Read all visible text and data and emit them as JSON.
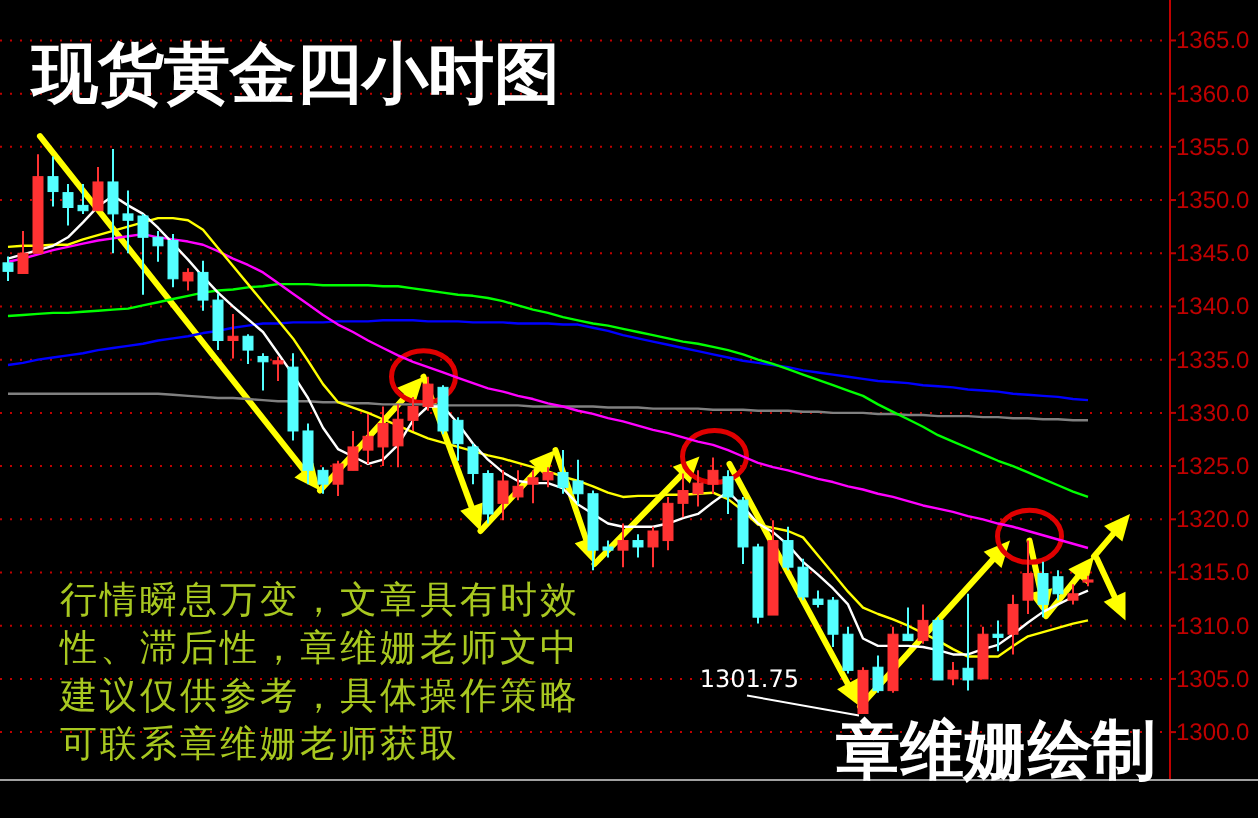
{
  "chart_data": {
    "type": "candlestick",
    "title": "现货黄金四小时图",
    "annotations": [
      "行情瞬息万变，文章具有时效性、滞后性，章维姗老师文中建议仅供参考，具体操作策略可联系章维姗老师获取",
      "章维姗绘制",
      "1301.75"
    ],
    "categories": [
      null,
      null,
      null,
      null,
      null,
      null,
      null,
      null,
      null,
      null,
      null,
      null,
      null,
      null,
      null,
      null,
      null,
      null,
      null,
      null,
      null,
      null,
      null,
      null,
      null,
      null,
      null,
      null,
      null,
      null,
      null,
      null,
      null,
      null,
      null,
      null,
      null,
      null,
      null,
      null,
      null,
      null,
      null,
      null,
      null,
      null,
      null,
      null,
      null,
      null,
      null,
      null,
      null,
      null,
      null,
      null,
      null,
      null,
      null,
      null,
      null,
      null,
      null,
      null,
      null,
      null,
      null,
      null,
      null,
      null,
      null,
      null,
      null
    ],
    "ohlc": [
      [
        1344.1,
        1344.7,
        1342.4,
        1343.3
      ],
      [
        1343.1,
        1347.1,
        1343.1,
        1345.0
      ],
      [
        1345.0,
        1354.3,
        1345.0,
        1352.2
      ],
      [
        1352.2,
        1354.1,
        1349.4,
        1350.8
      ],
      [
        1350.7,
        1351.5,
        1347.6,
        1349.3
      ],
      [
        1349.5,
        1351.5,
        1348.7,
        1349.0
      ],
      [
        1349.0,
        1353.1,
        1349.0,
        1351.7
      ],
      [
        1351.7,
        1354.8,
        1345.0,
        1348.7
      ],
      [
        1348.7,
        1350.9,
        1345.0,
        1348.1
      ],
      [
        1348.5,
        1348.7,
        1341.1,
        1346.5
      ],
      [
        1346.5,
        1347.1,
        1344.2,
        1345.7
      ],
      [
        1346.2,
        1346.8,
        1341.8,
        1342.6
      ],
      [
        1342.4,
        1343.6,
        1341.5,
        1343.2
      ],
      [
        1343.2,
        1344.3,
        1339.6,
        1340.6
      ],
      [
        1340.6,
        1341.2,
        1335.9,
        1336.8
      ],
      [
        1336.8,
        1339.3,
        1335.1,
        1337.2
      ],
      [
        1337.2,
        1337.4,
        1334.6,
        1335.9
      ],
      [
        1335.3,
        1335.6,
        1332.1,
        1334.8
      ],
      [
        1334.6,
        1335.3,
        1333.0,
        1334.9
      ],
      [
        1334.3,
        1335.6,
        1327.4,
        1328.3
      ],
      [
        1328.3,
        1329.0,
        1323.3,
        1324.6
      ],
      [
        1324.6,
        1324.9,
        1322.4,
        1323.3
      ],
      [
        1323.3,
        1325.5,
        1322.2,
        1325.2
      ],
      [
        1324.6,
        1328.3,
        1324.6,
        1326.8
      ],
      [
        1326.5,
        1329.9,
        1325.2,
        1327.8
      ],
      [
        1326.8,
        1330.6,
        1325.0,
        1329.0
      ],
      [
        1326.9,
        1330.8,
        1324.9,
        1329.4
      ],
      [
        1329.3,
        1331.5,
        1328.3,
        1330.6
      ],
      [
        1330.6,
        1333.4,
        1330.2,
        1332.7
      ],
      [
        1332.4,
        1332.6,
        1328.0,
        1328.3
      ],
      [
        1329.3,
        1329.6,
        1325.5,
        1327.1
      ],
      [
        1326.8,
        1327.1,
        1323.3,
        1324.3
      ],
      [
        1324.3,
        1324.6,
        1319.6,
        1320.5
      ],
      [
        1321.5,
        1324.6,
        1319.9,
        1323.6
      ],
      [
        1322.1,
        1324.6,
        1321.8,
        1323.1
      ],
      [
        1323.3,
        1324.6,
        1321.5,
        1323.9
      ],
      [
        1323.7,
        1324.9,
        1323.0,
        1324.4
      ],
      [
        1324.4,
        1326.5,
        1322.4,
        1323.0
      ],
      [
        1323.6,
        1325.6,
        1321.4,
        1322.4
      ],
      [
        1322.4,
        1322.7,
        1315.2,
        1317.1
      ],
      [
        1317.4,
        1318.0,
        1316.4,
        1317.1
      ],
      [
        1317.1,
        1319.6,
        1315.5,
        1318.0
      ],
      [
        1318.0,
        1318.6,
        1316.4,
        1317.4
      ],
      [
        1317.4,
        1319.3,
        1315.5,
        1318.9
      ],
      [
        1318.0,
        1322.1,
        1317.1,
        1321.5
      ],
      [
        1321.5,
        1324.3,
        1320.2,
        1322.7
      ],
      [
        1322.4,
        1324.6,
        1321.2,
        1323.4
      ],
      [
        1323.3,
        1325.8,
        1322.4,
        1324.6
      ],
      [
        1324.0,
        1324.6,
        1320.5,
        1322.1
      ],
      [
        1321.8,
        1322.1,
        1315.8,
        1317.4
      ],
      [
        1317.4,
        1317.7,
        1310.2,
        1310.8
      ],
      [
        1311.0,
        1319.9,
        1311.0,
        1318.0
      ],
      [
        1318.0,
        1319.3,
        1315.2,
        1315.5
      ],
      [
        1315.5,
        1316.3,
        1312.4,
        1312.7
      ],
      [
        1312.5,
        1313.3,
        1311.7,
        1312.0
      ],
      [
        1312.4,
        1312.7,
        1308.0,
        1309.2
      ],
      [
        1309.2,
        1309.9,
        1305.5,
        1305.8
      ],
      [
        1301.75,
        1306.1,
        1301.75,
        1305.8
      ],
      [
        1306.1,
        1307.2,
        1303.7,
        1303.9
      ],
      [
        1303.9,
        1309.9,
        1303.7,
        1309.2
      ],
      [
        1309.2,
        1311.7,
        1308.6,
        1308.6
      ],
      [
        1308.6,
        1312.0,
        1308.3,
        1310.5
      ],
      [
        1310.5,
        1310.8,
        1304.9,
        1304.9
      ],
      [
        1305.0,
        1306.6,
        1304.4,
        1305.8
      ],
      [
        1306.0,
        1313.0,
        1303.9,
        1304.9
      ],
      [
        1305.0,
        1309.9,
        1305.0,
        1309.2
      ],
      [
        1309.2,
        1310.5,
        1307.6,
        1308.9
      ],
      [
        1309.2,
        1312.9,
        1307.3,
        1312.0
      ],
      [
        1312.4,
        1318.0,
        1311.1,
        1314.9
      ],
      [
        1314.9,
        1316.0,
        1310.8,
        1312.0
      ],
      [
        1314.6,
        1315.2,
        1312.4,
        1313.0
      ],
      [
        1312.4,
        1313.9,
        1312.0,
        1313.0
      ],
      [
        1314.1,
        1314.7,
        1313.7,
        1314.3
      ]
    ],
    "colors": [
      "#54ffff",
      "#ff3232",
      "#ff3232",
      "#54ffff",
      "#54ffff",
      "#54ffff",
      "#ff3232",
      "#54ffff",
      "#54ffff",
      "#54ffff",
      "#54ffff",
      "#54ffff",
      "#ff3232",
      "#54ffff",
      "#54ffff",
      "#ff3232",
      "#54ffff",
      "#54ffff",
      "#ff3232",
      "#54ffff",
      "#54ffff",
      "#54ffff",
      "#ff3232",
      "#ff3232",
      "#ff3232",
      "#ff3232",
      "#ff3232",
      "#ff3232",
      "#ff3232",
      "#54ffff",
      "#54ffff",
      "#54ffff",
      "#54ffff",
      "#ff3232",
      "#ff3232",
      "#ff3232",
      "#ff3232",
      "#54ffff",
      "#54ffff",
      "#54ffff",
      "#54ffff",
      "#ff3232",
      "#54ffff",
      "#ff3232",
      "#ff3232",
      "#ff3232",
      "#ff3232",
      "#ff3232",
      "#54ffff",
      "#54ffff",
      "#54ffff",
      "#ff3232",
      "#54ffff",
      "#54ffff",
      "#54ffff",
      "#54ffff",
      "#54ffff",
      "#ff3232",
      "#54ffff",
      "#ff3232",
      "#54ffff",
      "#ff3232",
      "#54ffff",
      "#ff3232",
      "#54ffff",
      "#ff3232",
      "#54ffff",
      "#ff3232",
      "#ff3232",
      "#54ffff",
      "#54ffff",
      "#ff3232",
      "#ff3232"
    ],
    "series": [
      {
        "type": "line",
        "color": "#808080",
        "values": [
          1331.8,
          1331.8,
          1331.8,
          1331.8,
          1331.8,
          1331.8,
          1331.8,
          1331.8,
          1331.8,
          1331.8,
          1331.8,
          1331.7,
          1331.6,
          1331.5,
          1331.4,
          1331.4,
          1331.3,
          1331.2,
          1331.1,
          1331.1,
          1331.1,
          1331.0,
          1331.0,
          1330.9,
          1330.9,
          1330.8,
          1330.8,
          1330.8,
          1330.8,
          1330.7,
          1330.7,
          1330.7,
          1330.7,
          1330.7,
          1330.7,
          1330.6,
          1330.6,
          1330.6,
          1330.6,
          1330.6,
          1330.5,
          1330.5,
          1330.5,
          1330.4,
          1330.4,
          1330.4,
          1330.4,
          1330.3,
          1330.3,
          1330.3,
          1330.2,
          1330.2,
          1330.2,
          1330.1,
          1330.1,
          1330.0,
          1330.0,
          1330.0,
          1329.9,
          1329.9,
          1329.8,
          1329.8,
          1329.7,
          1329.7,
          1329.7,
          1329.6,
          1329.6,
          1329.5,
          1329.5,
          1329.4,
          1329.4,
          1329.3,
          1329.3
        ]
      },
      {
        "type": "line",
        "color": "#0000ff",
        "values": [
          1334.5,
          1334.7,
          1335.0,
          1335.2,
          1335.4,
          1335.6,
          1335.9,
          1336.1,
          1336.3,
          1336.5,
          1336.8,
          1337.0,
          1337.2,
          1337.5,
          1337.7,
          1338.0,
          1338.2,
          1338.4,
          1338.4,
          1338.5,
          1338.5,
          1338.5,
          1338.6,
          1338.6,
          1338.6,
          1338.7,
          1338.7,
          1338.7,
          1338.6,
          1338.6,
          1338.6,
          1338.5,
          1338.5,
          1338.5,
          1338.4,
          1338.4,
          1338.4,
          1338.3,
          1338.3,
          1338.0,
          1337.7,
          1337.3,
          1337.0,
          1336.7,
          1336.4,
          1336.1,
          1335.8,
          1335.5,
          1335.2,
          1334.9,
          1334.7,
          1334.5,
          1334.3,
          1334.0,
          1333.8,
          1333.6,
          1333.4,
          1333.2,
          1333.0,
          1332.9,
          1332.8,
          1332.6,
          1332.5,
          1332.4,
          1332.2,
          1332.1,
          1332.0,
          1331.8,
          1331.7,
          1331.6,
          1331.5,
          1331.3,
          1331.2
        ]
      },
      {
        "type": "line",
        "color": "#00ff00",
        "values": [
          1339.1,
          1339.2,
          1339.3,
          1339.4,
          1339.4,
          1339.5,
          1339.6,
          1339.7,
          1339.8,
          1340.1,
          1340.4,
          1340.7,
          1341.0,
          1341.3,
          1341.5,
          1341.6,
          1341.8,
          1341.9,
          1342.1,
          1342.1,
          1342.1,
          1342.0,
          1342.0,
          1342.0,
          1342.0,
          1341.9,
          1341.9,
          1341.7,
          1341.5,
          1341.3,
          1341.1,
          1341.0,
          1340.8,
          1340.5,
          1340.1,
          1339.7,
          1339.4,
          1339.0,
          1338.7,
          1338.4,
          1338.2,
          1337.9,
          1337.6,
          1337.3,
          1337.0,
          1336.7,
          1336.5,
          1336.2,
          1335.9,
          1335.5,
          1335.0,
          1334.6,
          1334.1,
          1333.6,
          1333.1,
          1332.6,
          1332.1,
          1331.6,
          1330.8,
          1330.1,
          1329.4,
          1328.7,
          1327.9,
          1327.3,
          1326.7,
          1326.1,
          1325.5,
          1325.0,
          1324.4,
          1323.8,
          1323.2,
          1322.6,
          1322.1
        ]
      },
      {
        "type": "line",
        "color": "#ff00ff",
        "values": [
          1344.2,
          1344.5,
          1344.9,
          1345.3,
          1345.6,
          1345.9,
          1346.2,
          1346.4,
          1346.6,
          1346.8,
          1346.5,
          1346.3,
          1346.1,
          1345.8,
          1345.2,
          1344.5,
          1343.9,
          1343.2,
          1342.2,
          1341.2,
          1340.2,
          1339.2,
          1338.3,
          1337.6,
          1336.8,
          1336.1,
          1335.4,
          1334.8,
          1334.3,
          1333.8,
          1333.3,
          1332.8,
          1332.3,
          1332.0,
          1331.6,
          1331.3,
          1330.9,
          1330.6,
          1330.2,
          1329.9,
          1329.5,
          1329.2,
          1328.8,
          1328.4,
          1328.1,
          1327.7,
          1327.3,
          1327.0,
          1326.5,
          1325.9,
          1325.3,
          1324.9,
          1324.6,
          1324.2,
          1323.8,
          1323.5,
          1323.1,
          1322.8,
          1322.4,
          1322.1,
          1321.7,
          1321.3,
          1321.0,
          1320.7,
          1320.3,
          1320.0,
          1319.6,
          1319.3,
          1318.9,
          1318.5,
          1318.1,
          1317.7,
          1317.3
        ]
      },
      {
        "type": "line",
        "color": "#ffff00",
        "values": [
          1345.6,
          1345.7,
          1345.7,
          1345.8,
          1345.8,
          1346.3,
          1346.7,
          1347.1,
          1347.5,
          1347.9,
          1348.3,
          1348.3,
          1348.1,
          1347.2,
          1345.5,
          1343.8,
          1342.1,
          1340.4,
          1338.7,
          1337.0,
          1334.9,
          1332.7,
          1331.0,
          1330.5,
          1330.0,
          1329.4,
          1328.8,
          1328.2,
          1327.6,
          1327.2,
          1326.8,
          1326.4,
          1326.0,
          1325.7,
          1325.3,
          1324.9,
          1324.5,
          1324.0,
          1323.6,
          1323.1,
          1322.5,
          1322.1,
          1322.2,
          1322.2,
          1322.3,
          1322.3,
          1322.4,
          1322.5,
          1321.9,
          1320.8,
          1319.5,
          1319.2,
          1318.9,
          1318.3,
          1316.6,
          1314.9,
          1313.2,
          1311.7,
          1311.1,
          1310.6,
          1310.0,
          1309.3,
          1308.6,
          1307.8,
          1307.1,
          1307.1,
          1307.1,
          1308.1,
          1309.0,
          1309.4,
          1309.8,
          1310.2,
          1310.5
        ]
      },
      {
        "type": "line",
        "color": "#ffffff",
        "values": [
          1344.5,
          1344.9,
          1345.3,
          1345.7,
          1346.5,
          1347.9,
          1349.4,
          1350.4,
          1349.5,
          1348.7,
          1347.4,
          1345.9,
          1344.4,
          1342.8,
          1341.3,
          1340.0,
          1338.8,
          1337.6,
          1335.6,
          1333.6,
          1331.4,
          1328.6,
          1326.6,
          1325.9,
          1325.2,
          1325.6,
          1327.0,
          1329.3,
          1330.6,
          1330.6,
          1329.0,
          1327.1,
          1325.6,
          1324.4,
          1323.6,
          1323.4,
          1323.4,
          1322.9,
          1321.4,
          1320.5,
          1319.6,
          1319.3,
          1319.3,
          1319.3,
          1319.6,
          1320.1,
          1320.5,
          1321.6,
          1322.6,
          1321.2,
          1319.6,
          1318.8,
          1317.6,
          1316.0,
          1314.8,
          1313.5,
          1312.0,
          1308.8,
          1308.1,
          1308.1,
          1308.1,
          1308.0,
          1307.7,
          1307.3,
          1307.3,
          1307.8,
          1308.2,
          1309.2,
          1310.3,
          1311.3,
          1312.0,
          1312.7,
          1313.3
        ]
      }
    ],
    "ylim": [
      1295.5,
      1368.8
    ],
    "yticks": [
      {
        "value": 1300,
        "label": "1300.0"
      },
      {
        "value": 1305,
        "label": "1305.0"
      },
      {
        "value": 1310,
        "label": "1310.0"
      },
      {
        "value": 1315,
        "label": "1315.0"
      },
      {
        "value": 1320,
        "label": "1320.0"
      },
      {
        "value": 1325,
        "label": "1325.0"
      },
      {
        "value": 1330,
        "label": "1330.0"
      },
      {
        "value": 1335,
        "label": "1335.0"
      },
      {
        "value": 1340,
        "label": "1340.0"
      },
      {
        "value": 1345,
        "label": "1345.0"
      },
      {
        "value": 1350,
        "label": "1350.0"
      },
      {
        "value": 1355,
        "label": "1355.0"
      },
      {
        "value": 1360,
        "label": "1360.0"
      },
      {
        "value": 1365,
        "label": "1365.0"
      }
    ],
    "grid": "y",
    "tick_labels": "y"
  }
}
